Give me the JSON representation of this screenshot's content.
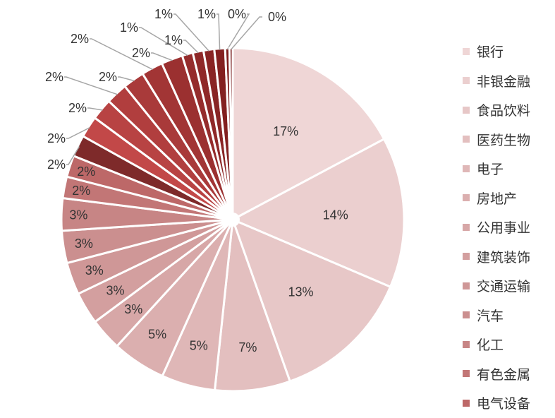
{
  "chart_data": {
    "type": "pie",
    "slices": [
      {
        "label": "银行",
        "value": 17,
        "display": "17%",
        "color": "#efd6d6"
      },
      {
        "label": "非银金融",
        "value": 14,
        "display": "14%",
        "color": "#ebcfcf"
      },
      {
        "label": "食品饮料",
        "value": 13,
        "display": "13%",
        "color": "#e7c7c7"
      },
      {
        "label": "医药生物",
        "value": 7,
        "display": "7%",
        "color": "#e3bfbf"
      },
      {
        "label": "电子",
        "value": 5,
        "display": "5%",
        "color": "#dfb7b7"
      },
      {
        "label": "房地产",
        "value": 5,
        "display": "5%",
        "color": "#dbafaf"
      },
      {
        "label": "公用事业",
        "value": 3,
        "display": "3%",
        "color": "#d7a7a7"
      },
      {
        "label": "建筑装饰",
        "value": 3,
        "display": "3%",
        "color": "#d39f9f"
      },
      {
        "label": "交通运输",
        "value": 3,
        "display": "3%",
        "color": "#cf9797"
      },
      {
        "label": "汽车",
        "value": 3,
        "display": "3%",
        "color": "#cb8f8f"
      },
      {
        "label": "化工",
        "value": 3,
        "display": "3%",
        "color": "#c78585"
      },
      {
        "label": "有色金属",
        "value": 2,
        "display": "2%",
        "color": "#c27676"
      },
      {
        "label": "电气设备",
        "value": 2,
        "display": "2%",
        "color": "#bd6868"
      },
      {
        "label": "",
        "value": 2,
        "display": "2%",
        "color": "#7e2a2a"
      },
      {
        "label": "",
        "value": 2,
        "display": "2%",
        "color": "#c24848"
      },
      {
        "label": "",
        "value": 2,
        "display": "2%",
        "color": "#b84343"
      },
      {
        "label": "",
        "value": 2,
        "display": "2%",
        "color": "#b13e3e"
      },
      {
        "label": "",
        "value": 2,
        "display": "2%",
        "color": "#a93a3a"
      },
      {
        "label": "",
        "value": 2,
        "display": "2%",
        "color": "#a23535"
      },
      {
        "label": "",
        "value": 2,
        "display": "2%",
        "color": "#9b3030"
      },
      {
        "label": "",
        "value": 1,
        "display": "1%",
        "color": "#952c2c"
      },
      {
        "label": "",
        "value": 1,
        "display": "1%",
        "color": "#8f2828"
      },
      {
        "label": "",
        "value": 1,
        "display": "1%",
        "color": "#892424"
      },
      {
        "label": "",
        "value": 1,
        "display": "1%",
        "color": "#832020"
      },
      {
        "label": "",
        "value": 0.4,
        "display": "0%",
        "color": "#7d1c1c"
      },
      {
        "label": "",
        "value": 0.3,
        "display": "0%",
        "color": "#771818"
      }
    ],
    "legend": {
      "placement": "right",
      "items": [
        "银行",
        "非银金融",
        "食品饮料",
        "医药生物",
        "电子",
        "房地产",
        "公用事业",
        "建筑装饰",
        "交通运输",
        "汽车",
        "化工",
        "有色金属",
        "电气设备"
      ]
    }
  }
}
